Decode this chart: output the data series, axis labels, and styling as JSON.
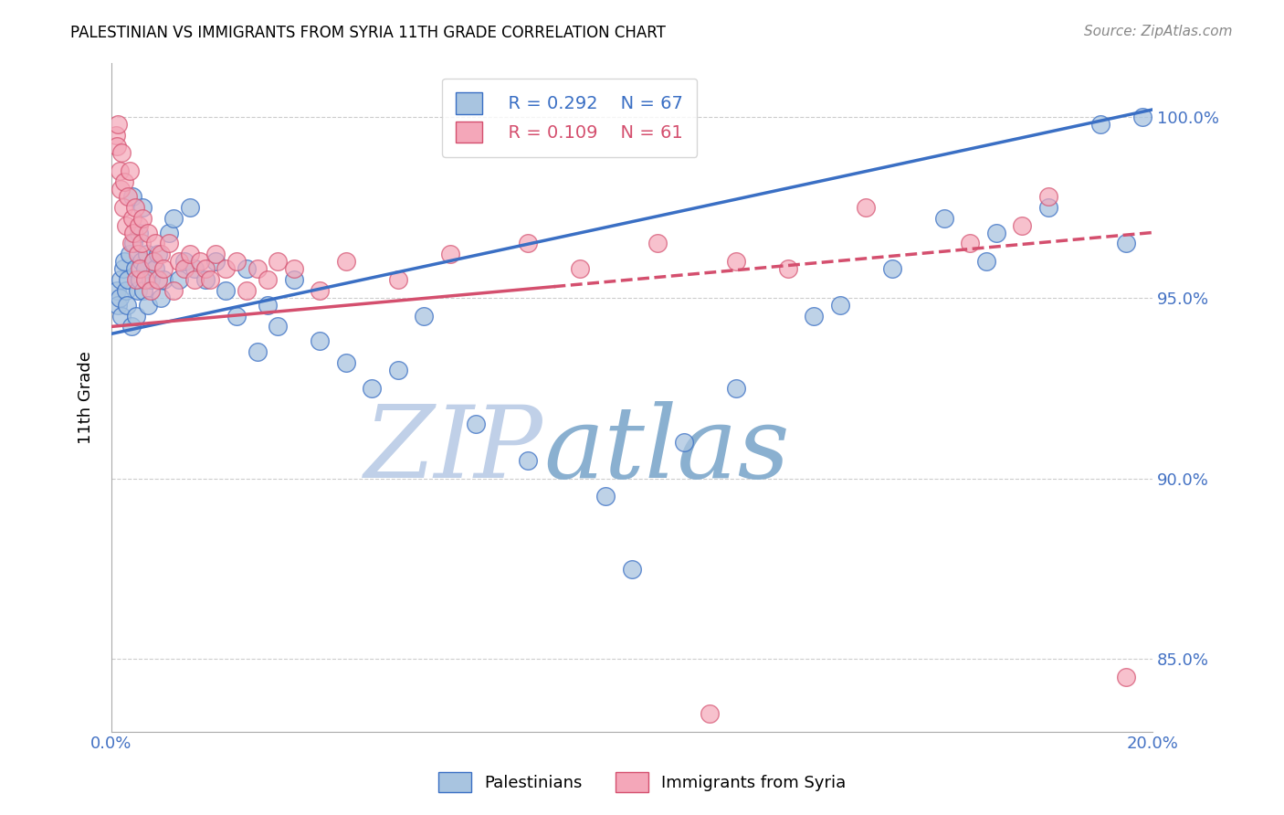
{
  "title": "PALESTINIAN VS IMMIGRANTS FROM SYRIA 11TH GRADE CORRELATION CHART",
  "source_text": "Source: ZipAtlas.com",
  "ylabel": "11th Grade",
  "legend_label_blue": "Palestinians",
  "legend_label_pink": "Immigrants from Syria",
  "r_blue": 0.292,
  "n_blue": 67,
  "r_pink": 0.109,
  "n_pink": 61,
  "xlim": [
    0.0,
    20.0
  ],
  "ylim": [
    83.0,
    101.5
  ],
  "yticks": [
    85.0,
    90.0,
    95.0,
    100.0
  ],
  "ytick_labels": [
    "85.0%",
    "90.0%",
    "95.0%",
    "100.0%"
  ],
  "xticks": [
    0.0,
    2.0,
    4.0,
    6.0,
    8.0,
    10.0,
    12.0,
    14.0,
    16.0,
    18.0,
    20.0
  ],
  "color_blue": "#a8c4e0",
  "color_pink": "#f4a7b9",
  "line_color_blue": "#3a6fc4",
  "line_color_pink": "#d44f6e",
  "watermark_zip": "ZIP",
  "watermark_atlas": "atlas",
  "watermark_color_zip": "#c0d0e8",
  "watermark_color_atlas": "#8ab0d0",
  "axis_tick_color": "#4472c4",
  "blue_line_x0": 0.0,
  "blue_line_y0": 94.0,
  "blue_line_x1": 20.0,
  "blue_line_y1": 100.2,
  "pink_line_x0": 0.0,
  "pink_line_y0": 94.2,
  "pink_line_x1": 20.0,
  "pink_line_y1": 96.8,
  "pink_solid_end": 8.5,
  "blue_scatter_x": [
    0.1,
    0.12,
    0.15,
    0.18,
    0.2,
    0.22,
    0.25,
    0.28,
    0.3,
    0.32,
    0.35,
    0.38,
    0.4,
    0.42,
    0.45,
    0.48,
    0.5,
    0.52,
    0.55,
    0.58,
    0.6,
    0.62,
    0.65,
    0.68,
    0.7,
    0.75,
    0.8,
    0.85,
    0.9,
    0.95,
    1.0,
    1.1,
    1.2,
    1.3,
    1.4,
    1.5,
    1.6,
    1.8,
    2.0,
    2.2,
    2.4,
    2.6,
    2.8,
    3.0,
    3.2,
    3.5,
    4.0,
    4.5,
    5.0,
    5.5,
    6.0,
    7.0,
    8.0,
    9.5,
    10.0,
    11.0,
    12.0,
    14.0,
    15.0,
    16.0,
    17.0,
    18.0,
    19.0,
    19.5,
    19.8,
    13.5,
    16.8
  ],
  "blue_scatter_y": [
    95.2,
    94.8,
    95.0,
    95.5,
    94.5,
    95.8,
    96.0,
    95.2,
    94.8,
    95.5,
    96.2,
    94.2,
    97.8,
    96.5,
    95.8,
    94.5,
    95.2,
    96.8,
    95.5,
    96.0,
    97.5,
    95.2,
    95.8,
    96.2,
    94.8,
    95.5,
    96.0,
    95.8,
    96.2,
    95.0,
    95.5,
    96.8,
    97.2,
    95.5,
    96.0,
    97.5,
    95.8,
    95.5,
    96.0,
    95.2,
    94.5,
    95.8,
    93.5,
    94.8,
    94.2,
    95.5,
    93.8,
    93.2,
    92.5,
    93.0,
    94.5,
    91.5,
    90.5,
    89.5,
    87.5,
    91.0,
    92.5,
    94.8,
    95.8,
    97.2,
    96.8,
    97.5,
    99.8,
    96.5,
    100.0,
    94.5,
    96.0
  ],
  "pink_scatter_x": [
    0.08,
    0.1,
    0.12,
    0.15,
    0.18,
    0.2,
    0.22,
    0.25,
    0.28,
    0.32,
    0.35,
    0.38,
    0.4,
    0.42,
    0.45,
    0.48,
    0.5,
    0.52,
    0.55,
    0.58,
    0.6,
    0.65,
    0.7,
    0.75,
    0.8,
    0.85,
    0.9,
    0.95,
    1.0,
    1.1,
    1.2,
    1.3,
    1.4,
    1.5,
    1.6,
    1.7,
    1.8,
    1.9,
    2.0,
    2.2,
    2.4,
    2.6,
    2.8,
    3.0,
    3.2,
    3.5,
    4.0,
    4.5,
    5.5,
    6.5,
    8.0,
    9.0,
    10.5,
    12.0,
    13.0,
    14.5,
    16.5,
    17.5,
    18.0,
    19.5,
    11.5
  ],
  "pink_scatter_y": [
    99.5,
    99.2,
    99.8,
    98.5,
    98.0,
    99.0,
    97.5,
    98.2,
    97.0,
    97.8,
    98.5,
    96.5,
    97.2,
    96.8,
    97.5,
    95.5,
    96.2,
    97.0,
    95.8,
    96.5,
    97.2,
    95.5,
    96.8,
    95.2,
    96.0,
    96.5,
    95.5,
    96.2,
    95.8,
    96.5,
    95.2,
    96.0,
    95.8,
    96.2,
    95.5,
    96.0,
    95.8,
    95.5,
    96.2,
    95.8,
    96.0,
    95.2,
    95.8,
    95.5,
    96.0,
    95.8,
    95.2,
    96.0,
    95.5,
    96.2,
    96.5,
    95.8,
    96.5,
    96.0,
    95.8,
    97.5,
    96.5,
    97.0,
    97.8,
    84.5,
    83.5
  ]
}
